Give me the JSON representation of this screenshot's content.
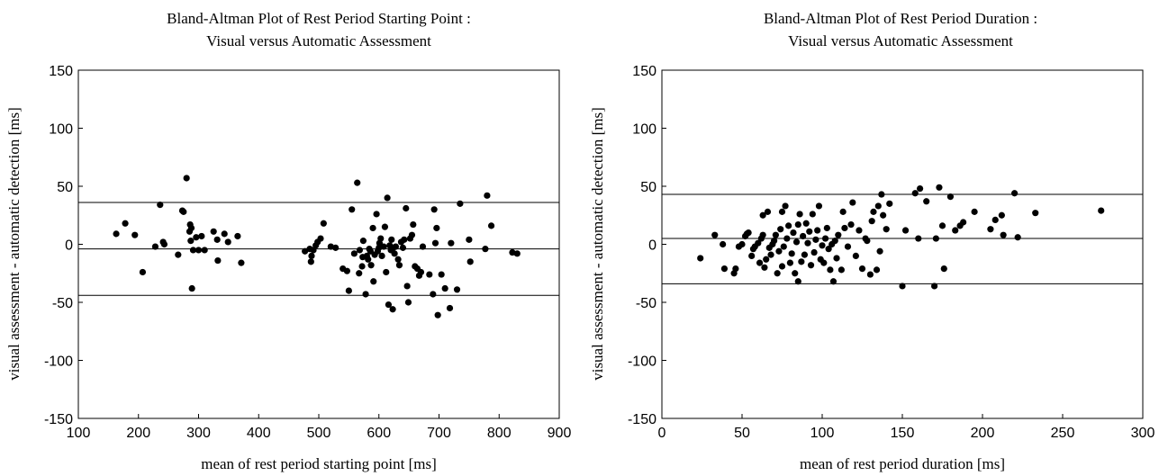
{
  "chart_data": [
    {
      "type": "scatter",
      "title_lines": [
        "Bland-Altman Plot of Rest Period Starting Point :",
        "Visual versus Automatic Assessment"
      ],
      "xlabel": "mean of rest period starting point [ms]",
      "ylabel": "visual assessment - automatic detection [ms]",
      "xlim": [
        100,
        900
      ],
      "ylim": [
        -150,
        150
      ],
      "xticks": [
        100,
        200,
        300,
        400,
        500,
        600,
        700,
        800,
        900
      ],
      "yticks": [
        -150,
        -100,
        -50,
        0,
        50,
        100,
        150
      ],
      "grid": false,
      "reference_lines": [
        36,
        -4,
        -44
      ],
      "points": [
        [
          163,
          9
        ],
        [
          178,
          18
        ],
        [
          194,
          8
        ],
        [
          207,
          -24
        ],
        [
          228,
          -2
        ],
        [
          236,
          34
        ],
        [
          241,
          2
        ],
        [
          243,
          0
        ],
        [
          266,
          -9
        ],
        [
          273,
          29
        ],
        [
          275,
          28
        ],
        [
          280,
          57
        ],
        [
          285,
          11
        ],
        [
          286,
          17
        ],
        [
          287,
          3
        ],
        [
          288,
          14
        ],
        [
          289,
          -38
        ],
        [
          291,
          -5
        ],
        [
          296,
          6
        ],
        [
          300,
          -5
        ],
        [
          305,
          7
        ],
        [
          310,
          -5
        ],
        [
          325,
          11
        ],
        [
          331,
          4
        ],
        [
          332,
          -14
        ],
        [
          343,
          9
        ],
        [
          349,
          2
        ],
        [
          365,
          7
        ],
        [
          371,
          -16
        ],
        [
          477,
          -6
        ],
        [
          485,
          -4
        ],
        [
          487,
          -15
        ],
        [
          488,
          -10
        ],
        [
          491,
          -5
        ],
        [
          495,
          -1
        ],
        [
          498,
          2
        ],
        [
          503,
          5
        ],
        [
          508,
          18
        ],
        [
          520,
          -2
        ],
        [
          528,
          -3
        ],
        [
          540,
          -21
        ],
        [
          547,
          -23
        ],
        [
          550,
          -40
        ],
        [
          555,
          30
        ],
        [
          559,
          -8
        ],
        [
          564,
          53
        ],
        [
          567,
          -25
        ],
        [
          568,
          -5
        ],
        [
          572,
          -19
        ],
        [
          573,
          -11
        ],
        [
          574,
          3
        ],
        [
          578,
          -43
        ],
        [
          580,
          -10
        ],
        [
          582,
          -13
        ],
        [
          584,
          -4
        ],
        [
          586,
          -6
        ],
        [
          587,
          -18
        ],
        [
          590,
          14
        ],
        [
          591,
          -32
        ],
        [
          593,
          -9
        ],
        [
          596,
          26
        ],
        [
          598,
          -6
        ],
        [
          600,
          -3
        ],
        [
          601,
          1
        ],
        [
          603,
          5
        ],
        [
          605,
          -10
        ],
        [
          608,
          -2
        ],
        [
          610,
          15
        ],
        [
          612,
          -24
        ],
        [
          614,
          40
        ],
        [
          616,
          -52
        ],
        [
          618,
          -1
        ],
        [
          620,
          -5
        ],
        [
          621,
          4
        ],
        [
          623,
          -56
        ],
        [
          624,
          -3
        ],
        [
          626,
          -8
        ],
        [
          628,
          -2
        ],
        [
          632,
          -13
        ],
        [
          634,
          -18
        ],
        [
          637,
          2
        ],
        [
          640,
          -3
        ],
        [
          642,
          4
        ],
        [
          645,
          31
        ],
        [
          647,
          -36
        ],
        [
          649,
          -50
        ],
        [
          652,
          5
        ],
        [
          655,
          8
        ],
        [
          657,
          17
        ],
        [
          660,
          -19
        ],
        [
          664,
          -21
        ],
        [
          667,
          -27
        ],
        [
          670,
          -24
        ],
        [
          673,
          -2
        ],
        [
          684,
          -26
        ],
        [
          690,
          -43
        ],
        [
          692,
          30
        ],
        [
          694,
          1
        ],
        [
          696,
          14
        ],
        [
          698,
          -61
        ],
        [
          704,
          -26
        ],
        [
          710,
          -38
        ],
        [
          718,
          -55
        ],
        [
          720,
          1
        ],
        [
          730,
          -39
        ],
        [
          735,
          35
        ],
        [
          750,
          4
        ],
        [
          752,
          -15
        ],
        [
          777,
          -4
        ],
        [
          780,
          42
        ],
        [
          787,
          16
        ],
        [
          822,
          -7
        ],
        [
          830,
          -8
        ]
      ]
    },
    {
      "type": "scatter",
      "title_lines": [
        "Bland-Altman Plot of Rest Period Duration :",
        "Visual versus Automatic Assessment"
      ],
      "xlabel": "mean of rest period duration [ms]",
      "ylabel": "visual assessment - automatic detection [ms]",
      "xlim": [
        0,
        300
      ],
      "ylim": [
        -150,
        150
      ],
      "xticks": [
        0,
        50,
        100,
        150,
        200,
        250,
        300
      ],
      "yticks": [
        -150,
        -100,
        -50,
        0,
        50,
        100,
        150
      ],
      "grid": false,
      "reference_lines": [
        43,
        5,
        -34
      ],
      "points": [
        [
          24,
          -12
        ],
        [
          33,
          8
        ],
        [
          38,
          0
        ],
        [
          39,
          -21
        ],
        [
          45,
          -25
        ],
        [
          46,
          -21
        ],
        [
          48,
          -2
        ],
        [
          50,
          0
        ],
        [
          52,
          7
        ],
        [
          53,
          9
        ],
        [
          54,
          10
        ],
        [
          56,
          -10
        ],
        [
          57,
          -4
        ],
        [
          58,
          -2
        ],
        [
          60,
          1
        ],
        [
          61,
          -16
        ],
        [
          62,
          5
        ],
        [
          63,
          8
        ],
        [
          63,
          25
        ],
        [
          64,
          -20
        ],
        [
          65,
          -13
        ],
        [
          66,
          28
        ],
        [
          67,
          -3
        ],
        [
          68,
          -9
        ],
        [
          69,
          0
        ],
        [
          70,
          3
        ],
        [
          71,
          8
        ],
        [
          72,
          -25
        ],
        [
          73,
          -6
        ],
        [
          74,
          13
        ],
        [
          75,
          28
        ],
        [
          75,
          -19
        ],
        [
          76,
          -2
        ],
        [
          77,
          33
        ],
        [
          78,
          5
        ],
        [
          79,
          16
        ],
        [
          80,
          -16
        ],
        [
          81,
          -8
        ],
        [
          82,
          10
        ],
        [
          83,
          -25
        ],
        [
          84,
          2
        ],
        [
          85,
          -32
        ],
        [
          85,
          17
        ],
        [
          86,
          26
        ],
        [
          87,
          -15
        ],
        [
          88,
          7
        ],
        [
          89,
          -9
        ],
        [
          90,
          18
        ],
        [
          91,
          1
        ],
        [
          92,
          11
        ],
        [
          93,
          -18
        ],
        [
          94,
          26
        ],
        [
          95,
          -7
        ],
        [
          96,
          4
        ],
        [
          97,
          12
        ],
        [
          98,
          33
        ],
        [
          99,
          -13
        ],
        [
          100,
          -1
        ],
        [
          101,
          -16
        ],
        [
          102,
          5
        ],
        [
          103,
          14
        ],
        [
          104,
          -4
        ],
        [
          105,
          -22
        ],
        [
          106,
          0
        ],
        [
          107,
          -32
        ],
        [
          108,
          3
        ],
        [
          109,
          -12
        ],
        [
          110,
          8
        ],
        [
          112,
          -22
        ],
        [
          113,
          28
        ],
        [
          114,
          14
        ],
        [
          116,
          -2
        ],
        [
          118,
          17
        ],
        [
          119,
          36
        ],
        [
          121,
          -10
        ],
        [
          123,
          12
        ],
        [
          125,
          -21
        ],
        [
          127,
          5
        ],
        [
          128,
          3
        ],
        [
          130,
          -26
        ],
        [
          131,
          20
        ],
        [
          132,
          28
        ],
        [
          134,
          -22
        ],
        [
          135,
          33
        ],
        [
          136,
          -6
        ],
        [
          137,
          43
        ],
        [
          138,
          25
        ],
        [
          140,
          13
        ],
        [
          142,
          35
        ],
        [
          150,
          -36
        ],
        [
          152,
          12
        ],
        [
          158,
          44
        ],
        [
          160,
          5
        ],
        [
          161,
          48
        ],
        [
          165,
          37
        ],
        [
          170,
          -36
        ],
        [
          171,
          5
        ],
        [
          173,
          49
        ],
        [
          175,
          16
        ],
        [
          176,
          -21
        ],
        [
          180,
          41
        ],
        [
          183,
          12
        ],
        [
          186,
          16
        ],
        [
          188,
          19
        ],
        [
          195,
          28
        ],
        [
          205,
          13
        ],
        [
          208,
          21
        ],
        [
          212,
          25
        ],
        [
          213,
          8
        ],
        [
          220,
          44
        ],
        [
          222,
          6
        ],
        [
          233,
          27
        ],
        [
          274,
          29
        ]
      ]
    }
  ]
}
